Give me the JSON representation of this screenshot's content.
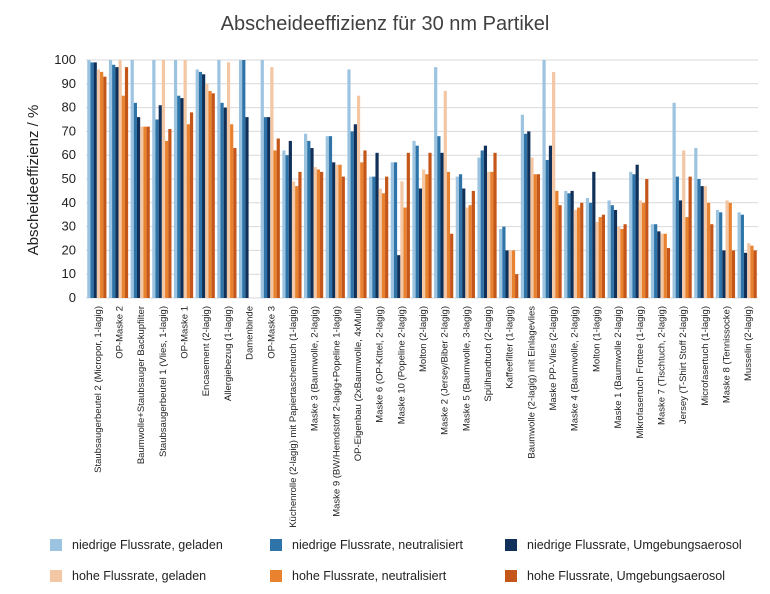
{
  "colors": {
    "low_charged": "#9cc3e0",
    "low_neutral": "#2e74a8",
    "low_ambient": "#10305a",
    "high_charged": "#f3c6a4",
    "high_neutral": "#e8822f",
    "high_ambient": "#c4561a",
    "grid": "#d9d9d9",
    "text": "#404040"
  },
  "chart_data": {
    "type": "bar",
    "title": "Abscheideeffizienz für 30 nm Partikel",
    "ylabel": "Abscheideeffizienz / %",
    "xlabel": "",
    "ylim": [
      0,
      100
    ],
    "yticks": [
      0,
      10,
      20,
      30,
      40,
      50,
      60,
      70,
      80,
      90,
      100
    ],
    "grid": true,
    "legend_position": "bottom",
    "categories": [
      "Staubsaugerbeutel 2 (Micropor, 1-lagig)",
      "OP-Maske 2",
      "Baumwolle+Staubsauger Backupfilter",
      "Staubsaugerbeutel 1 (Vlies, 1-lagig)",
      "OP-Maske 1",
      "Encasement (2-lagig)",
      "Allergiebezug (1-lagig)",
      "Damenbinde",
      "OP-Maske 3",
      "Küchenrolle (2-lagig) mit Papiertaschentuch (1-lagig)",
      "Maske 3 (Baumwolle, 2-lagig)",
      "Maske 9 (BW/Hemdstoff 2-lagig+Popeline 1-lagig)",
      "OP-Eigenbau (2xBaumwolle, 4xMull)",
      "Maske 6 (OP-Kittel, 2-lagig)",
      "Maske 10 (Popeline 2-lagig)",
      "Molton (2-lagig)",
      "Maske 2 (Jersey/Biber 2-lagig)",
      "Maske 5 (Baumwolle, 3-lagig)",
      "Spülhandtuch (2-lagig)",
      "Kaffeefilter (1-lagig)",
      "Baumwolle (2-lagig) mit Einlagevlies",
      "Maske PP-Vlies (2-lagig)",
      "Maske 4 (Baumwolle, 2-lagig)",
      "Molton (1-lagig)",
      "Maske 1 (Baumwolle 2-lagig)",
      "Mikrofasertuch Frottee (1-lagig)",
      "Maske 7 (Tischtuch, 2-lagig)",
      "Jersey (T-Shirt Stoff 2-lagig)",
      "Microfasertuch (1-lagig)",
      "Maske 8 (Tennissocke)",
      "Musselin (2-lagig)"
    ],
    "series": [
      {
        "name": "niedrige Flussrate, geladen",
        "color_key": "low_charged",
        "values": [
          100,
          100,
          100,
          100,
          100,
          96,
          100,
          100,
          100,
          62,
          69,
          68,
          96,
          51,
          57,
          66,
          97,
          51,
          59,
          29,
          77,
          100,
          45,
          42,
          41,
          53,
          31,
          82,
          63,
          37,
          36
        ]
      },
      {
        "name": "niedrige Flussrate, neutralisiert",
        "color_key": "low_neutral",
        "values": [
          99,
          98,
          82,
          75,
          85,
          95,
          82,
          100,
          76,
          60,
          66,
          68,
          70,
          51,
          57,
          64,
          68,
          52,
          62,
          30,
          69,
          58,
          44,
          40,
          39,
          52,
          31,
          51,
          50,
          36,
          35
        ]
      },
      {
        "name": "niedrige Flussrate, Umgebungsaerosol",
        "color_key": "low_ambient",
        "values": [
          99,
          97,
          76,
          81,
          84,
          94,
          80,
          76,
          76,
          66,
          63,
          57,
          73,
          61,
          18,
          46,
          61,
          46,
          64,
          20,
          70,
          64,
          45,
          53,
          37,
          56,
          28,
          41,
          47,
          20,
          19
        ]
      },
      {
        "name": "hohe Flussrate, geladen",
        "color_key": "high_charged",
        "values": [
          96,
          100,
          72,
          100,
          100,
          90,
          99,
          null,
          97,
          49,
          55,
          56,
          85,
          46,
          49,
          54,
          87,
          38,
          53,
          20,
          59,
          95,
          37,
          32,
          30,
          41,
          27,
          62,
          47,
          41,
          23
        ]
      },
      {
        "name": "hohe Flussrate, neutralisiert",
        "color_key": "high_neutral",
        "values": [
          95,
          85,
          72,
          66,
          73,
          87,
          73,
          null,
          62,
          47,
          54,
          56,
          57,
          44,
          38,
          52,
          53,
          39,
          53,
          20,
          52,
          45,
          38,
          34,
          29,
          40,
          27,
          34,
          40,
          40,
          22
        ]
      },
      {
        "name": "hohe Flussrate, Umgebungsaerosol",
        "color_key": "high_ambient",
        "values": [
          93,
          97,
          72,
          71,
          78,
          86,
          63,
          null,
          67,
          53,
          53,
          51,
          62,
          51,
          61,
          61,
          27,
          45,
          61,
          10,
          52,
          39,
          40,
          35,
          31,
          50,
          21,
          51,
          31,
          20,
          20
        ]
      }
    ]
  }
}
